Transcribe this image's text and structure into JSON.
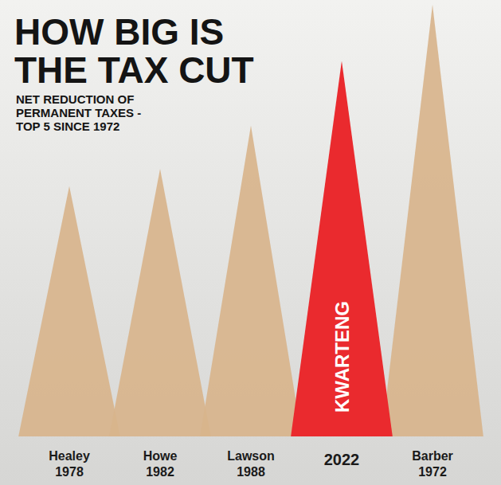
{
  "chart_data": {
    "type": "triangle",
    "title": "HOW BIG IS THE TAX CUT",
    "subtitle": "NET REDUCTION OF PERMANENT TAXES - TOP 5 SINCE 1972",
    "categories": [
      "Healey 1978",
      "Howe 1982",
      "Lawson 1988",
      "2022",
      "Barber 1972"
    ],
    "values": [
      58,
      62,
      72,
      87,
      100
    ],
    "colors": [
      "#d8b48c",
      "#d8b48c",
      "#d8b48c",
      "#ea2a2e",
      "#d8b48c"
    ],
    "ylim": [
      0,
      100
    ],
    "tick_labels": "x",
    "annotations": [
      {
        "text": "KWARTENG",
        "category": "2022"
      }
    ]
  }
}
